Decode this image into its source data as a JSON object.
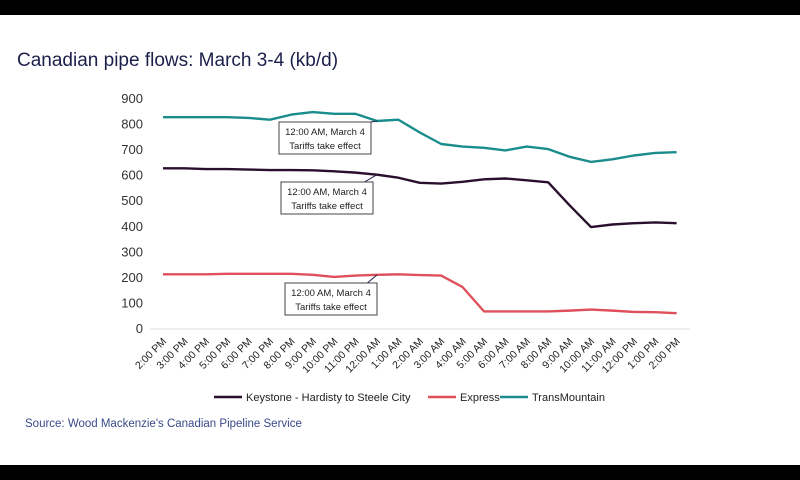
{
  "chart_data": {
    "type": "line",
    "title": "Canadian pipe flows: March 3-4 (kb/d)",
    "xlabel": "",
    "ylabel": "",
    "ylim": [
      0,
      900
    ],
    "yticks": [
      "0",
      "100",
      "200",
      "300",
      "400",
      "500",
      "600",
      "700",
      "800",
      "900"
    ],
    "categories": [
      "2:00 PM",
      "3:00 PM",
      "4:00 PM",
      "5:00 PM",
      "6:00 PM",
      "7:00 PM",
      "8:00 PM",
      "9:00 PM",
      "10:00 PM",
      "11:00 PM",
      "12:00 AM",
      "1:00 AM",
      "2:00 AM",
      "3:00 AM",
      "4:00 AM",
      "5:00 AM",
      "6:00 AM",
      "7:00 AM",
      "8:00 AM",
      "9:00 AM",
      "10:00 AM",
      "11:00 AM",
      "12:00 PM",
      "1:00 PM",
      "2:00 PM"
    ],
    "series": [
      {
        "name": "Keystone - Hardisty to Steele City",
        "color": "#2b0f2e",
        "values": [
          625,
          625,
          622,
          622,
          620,
          618,
          618,
          617,
          613,
          608,
          600,
          588,
          568,
          565,
          572,
          582,
          585,
          578,
          570,
          480,
          395,
          405,
          410,
          413,
          410
        ]
      },
      {
        "name": "Express",
        "color": "#e0505c",
        "values": [
          210,
          210,
          210,
          212,
          212,
          212,
          212,
          208,
          200,
          205,
          208,
          210,
          207,
          205,
          160,
          65,
          65,
          65,
          65,
          68,
          72,
          68,
          63,
          62,
          58
        ]
      },
      {
        "name": "TransMountain",
        "color": "#1a8c8c",
        "values": [
          825,
          825,
          825,
          825,
          822,
          815,
          835,
          845,
          838,
          838,
          810,
          815,
          765,
          720,
          710,
          705,
          695,
          710,
          700,
          670,
          650,
          660,
          675,
          685,
          688
        ]
      }
    ],
    "annotations": [
      {
        "line1": "12:00 AM, March 4",
        "line2": "Tariffs take effect",
        "series": 2,
        "at": 10
      },
      {
        "line1": "12:00 AM, March 4",
        "line2": "Tariffs take effect",
        "series": 0,
        "at": 10
      },
      {
        "line1": "12:00 AM, March 4",
        "line2": "Tariffs take effect",
        "series": 1,
        "at": 10
      }
    ],
    "legend_placement": "bottom",
    "grid": false
  },
  "source": "Source: Wood Mackenzie's Canadian Pipeline Service"
}
